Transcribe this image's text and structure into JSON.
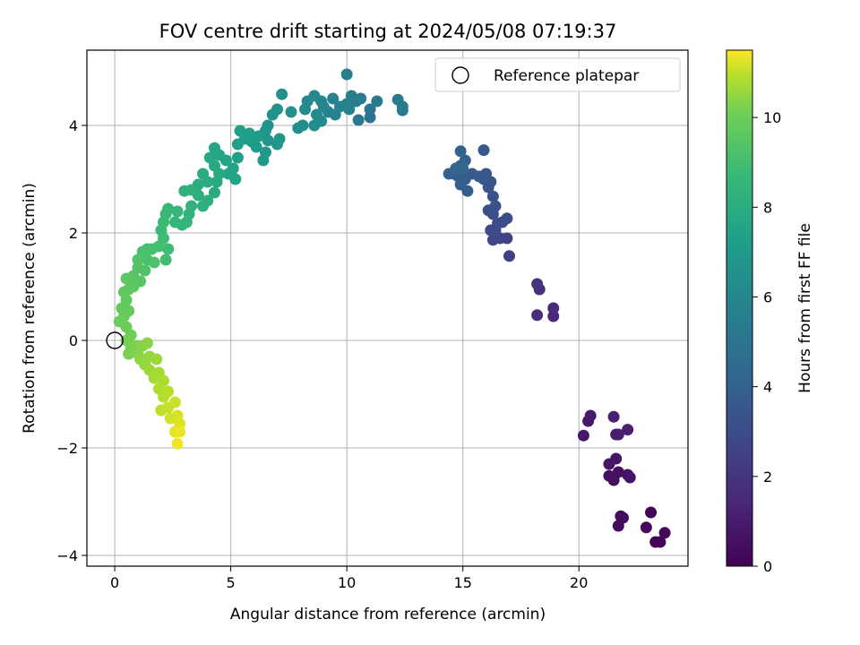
{
  "chart_data": {
    "type": "scatter",
    "title": "FOV centre drift starting at 2024/05/08 07:19:37",
    "xlabel": "Angular distance from reference (arcmin)",
    "ylabel": "Rotation from reference (arcmin)",
    "xlim": [
      -1.2,
      24.7
    ],
    "ylim": [
      -4.2,
      5.4
    ],
    "xticks": [
      0,
      5,
      10,
      15,
      20
    ],
    "yticks": [
      -4,
      -2,
      0,
      2,
      4
    ],
    "grid": true,
    "legend": {
      "placement": "top-right",
      "entries": [
        "Reference platepar"
      ]
    },
    "reference_point": {
      "x": 0,
      "y": 0
    },
    "colorbar": {
      "label": "Hours from first FF file",
      "range": [
        0,
        11.5
      ],
      "ticks": [
        0,
        2,
        4,
        6,
        8,
        10
      ],
      "colormap": "viridis"
    },
    "points": [
      [
        23.1,
        -3.2,
        0.1
      ],
      [
        23.3,
        -3.75,
        0.15
      ],
      [
        23.5,
        -3.75,
        0.2
      ],
      [
        23.7,
        -3.58,
        0.25
      ],
      [
        22.9,
        -3.48,
        0.3
      ],
      [
        21.8,
        -3.27,
        0.35
      ],
      [
        21.7,
        -3.45,
        0.4
      ],
      [
        21.9,
        -3.3,
        0.45
      ],
      [
        21.3,
        -2.52,
        0.5
      ],
      [
        21.5,
        -2.6,
        0.55
      ],
      [
        21.7,
        -2.45,
        0.6
      ],
      [
        22.1,
        -2.5,
        0.65
      ],
      [
        22.2,
        -2.55,
        0.7
      ],
      [
        21.6,
        -2.2,
        0.75
      ],
      [
        21.3,
        -2.3,
        0.8
      ],
      [
        20.2,
        -1.77,
        0.85
      ],
      [
        20.4,
        -1.5,
        0.9
      ],
      [
        20.5,
        -1.4,
        0.95
      ],
      [
        21.6,
        -1.75,
        1.0
      ],
      [
        21.7,
        -1.75,
        1.05
      ],
      [
        22.1,
        -1.66,
        1.1
      ],
      [
        21.5,
        -1.42,
        1.15
      ],
      [
        18.9,
        0.45,
        1.5
      ],
      [
        18.9,
        0.6,
        1.6
      ],
      [
        18.2,
        0.47,
        1.7
      ],
      [
        18.3,
        0.95,
        1.8
      ],
      [
        18.2,
        1.05,
        1.9
      ],
      [
        17.0,
        1.57,
        2.5
      ],
      [
        16.9,
        1.9,
        2.6
      ],
      [
        16.6,
        1.9,
        2.7
      ],
      [
        16.3,
        1.87,
        2.8
      ],
      [
        16.4,
        2.05,
        2.9
      ],
      [
        16.2,
        2.05,
        3.0
      ],
      [
        16.5,
        2.18,
        3.05
      ],
      [
        16.7,
        2.2,
        3.1
      ],
      [
        16.9,
        2.27,
        3.15
      ],
      [
        16.3,
        2.35,
        3.2
      ],
      [
        16.1,
        2.42,
        3.25
      ],
      [
        16.4,
        2.5,
        3.3
      ],
      [
        16.3,
        2.68,
        3.35
      ],
      [
        16.1,
        2.85,
        3.4
      ],
      [
        16.2,
        2.95,
        3.45
      ],
      [
        15.9,
        3.0,
        3.5
      ],
      [
        16.0,
        3.1,
        3.55
      ],
      [
        15.7,
        3.05,
        3.6
      ],
      [
        15.9,
        3.54,
        3.65
      ],
      [
        15.4,
        3.1,
        3.7
      ],
      [
        15.2,
        2.78,
        3.75
      ],
      [
        15.1,
        3.0,
        3.8
      ],
      [
        14.9,
        2.9,
        3.85
      ],
      [
        14.8,
        3.05,
        3.9
      ],
      [
        14.6,
        3.1,
        3.95
      ],
      [
        14.4,
        3.1,
        4.0
      ],
      [
        14.9,
        3.25,
        4.05
      ],
      [
        15.1,
        3.35,
        4.1
      ],
      [
        14.9,
        3.52,
        4.15
      ],
      [
        14.7,
        3.2,
        4.2
      ],
      [
        15.0,
        3.2,
        4.25
      ],
      [
        11.0,
        4.15,
        5.0
      ],
      [
        11.0,
        4.3,
        5.1
      ],
      [
        10.5,
        4.1,
        5.2
      ],
      [
        11.3,
        4.45,
        5.25
      ],
      [
        12.4,
        4.28,
        5.3
      ],
      [
        12.4,
        4.35,
        5.35
      ],
      [
        12.2,
        4.48,
        5.4
      ],
      [
        10.0,
        4.95,
        5.45
      ],
      [
        10.6,
        4.5,
        5.5
      ],
      [
        10.4,
        4.45,
        5.55
      ],
      [
        10.2,
        4.55,
        5.6
      ],
      [
        10.0,
        4.4,
        5.65
      ],
      [
        10.1,
        4.3,
        5.7
      ],
      [
        9.7,
        4.35,
        5.75
      ],
      [
        9.4,
        4.5,
        5.8
      ],
      [
        9.2,
        4.25,
        5.85
      ],
      [
        9.5,
        4.2,
        5.9
      ],
      [
        9.0,
        4.35,
        5.95
      ],
      [
        8.9,
        4.45,
        6.0
      ],
      [
        8.6,
        4.55,
        6.05
      ],
      [
        8.3,
        4.45,
        6.1
      ],
      [
        8.2,
        4.3,
        6.15
      ],
      [
        8.7,
        4.2,
        6.2
      ],
      [
        8.9,
        4.08,
        6.25
      ],
      [
        8.6,
        4.0,
        6.3
      ],
      [
        8.1,
        4.0,
        6.35
      ],
      [
        7.9,
        3.95,
        6.4
      ],
      [
        7.6,
        4.25,
        6.45
      ],
      [
        7.2,
        4.58,
        6.5
      ],
      [
        7.0,
        4.3,
        6.55
      ],
      [
        6.8,
        4.2,
        6.6
      ],
      [
        6.6,
        4.0,
        6.65
      ],
      [
        6.5,
        3.9,
        6.7
      ],
      [
        6.6,
        3.72,
        6.75
      ],
      [
        7.0,
        3.65,
        6.8
      ],
      [
        7.1,
        3.75,
        6.85
      ],
      [
        6.5,
        3.5,
        6.9
      ],
      [
        6.4,
        3.35,
        6.95
      ],
      [
        6.1,
        3.6,
        7.0
      ],
      [
        5.9,
        3.7,
        7.05
      ],
      [
        6.2,
        3.8,
        7.1
      ],
      [
        5.8,
        3.85,
        7.15
      ],
      [
        5.6,
        3.75,
        7.2
      ],
      [
        5.3,
        3.65,
        7.25
      ],
      [
        5.4,
        3.9,
        7.3
      ],
      [
        5.3,
        3.4,
        7.35
      ],
      [
        5.1,
        3.2,
        7.4
      ],
      [
        5.2,
        3.0,
        7.45
      ],
      [
        4.9,
        3.1,
        7.5
      ],
      [
        4.8,
        3.35,
        7.55
      ],
      [
        4.5,
        3.45,
        7.6
      ],
      [
        4.3,
        3.58,
        7.65
      ],
      [
        4.1,
        3.4,
        7.7
      ],
      [
        4.3,
        3.25,
        7.75
      ],
      [
        4.5,
        3.1,
        7.8
      ],
      [
        4.4,
        2.95,
        7.85
      ],
      [
        4.3,
        2.75,
        7.9
      ],
      [
        4.0,
        2.95,
        7.95
      ],
      [
        3.8,
        3.1,
        8.0
      ],
      [
        3.6,
        2.9,
        8.05
      ],
      [
        3.6,
        2.7,
        8.1
      ],
      [
        3.8,
        2.5,
        8.15
      ],
      [
        4.0,
        2.6,
        8.2
      ],
      [
        3.3,
        2.8,
        8.25
      ],
      [
        3.0,
        2.78,
        8.3
      ],
      [
        3.3,
        2.5,
        8.35
      ],
      [
        3.2,
        2.35,
        8.4
      ],
      [
        3.1,
        2.2,
        8.45
      ],
      [
        2.9,
        2.15,
        8.5
      ],
      [
        2.7,
        2.4,
        8.55
      ],
      [
        2.6,
        2.2,
        8.6
      ],
      [
        2.3,
        2.45,
        8.65
      ],
      [
        2.2,
        2.35,
        8.7
      ],
      [
        2.1,
        2.2,
        8.75
      ],
      [
        2.0,
        2.05,
        8.8
      ],
      [
        2.1,
        1.9,
        8.85
      ],
      [
        2.3,
        1.7,
        8.9
      ],
      [
        2.2,
        1.5,
        8.95
      ],
      [
        1.9,
        1.75,
        9.0
      ],
      [
        1.6,
        1.7,
        9.05
      ],
      [
        1.4,
        1.7,
        9.1
      ],
      [
        1.2,
        1.65,
        9.15
      ],
      [
        1.4,
        1.5,
        9.2
      ],
      [
        1.7,
        1.45,
        9.25
      ],
      [
        1.3,
        1.3,
        9.3
      ],
      [
        1.0,
        1.5,
        9.35
      ],
      [
        1.0,
        1.35,
        9.4
      ],
      [
        0.8,
        1.2,
        9.45
      ],
      [
        1.1,
        1.1,
        9.5
      ],
      [
        0.8,
        1.0,
        9.55
      ],
      [
        0.5,
        1.15,
        9.6
      ],
      [
        0.6,
        0.95,
        9.65
      ],
      [
        0.4,
        0.9,
        9.7
      ],
      [
        0.5,
        0.75,
        9.75
      ],
      [
        0.3,
        0.6,
        9.8
      ],
      [
        0.6,
        0.55,
        9.85
      ],
      [
        0.4,
        0.45,
        9.9
      ],
      [
        0.2,
        0.35,
        9.95
      ],
      [
        0.5,
        0.25,
        10.0
      ],
      [
        0.7,
        0.1,
        10.05
      ],
      [
        0.5,
        0.0,
        10.1
      ],
      [
        0.7,
        -0.15,
        10.15
      ],
      [
        0.6,
        -0.25,
        10.2
      ],
      [
        0.9,
        -0.1,
        10.25
      ],
      [
        1.0,
        -0.25,
        10.3
      ],
      [
        1.2,
        -0.1,
        10.35
      ],
      [
        1.4,
        -0.05,
        10.4
      ],
      [
        1.1,
        -0.35,
        10.45
      ],
      [
        1.3,
        -0.45,
        10.5
      ],
      [
        1.5,
        -0.3,
        10.55
      ],
      [
        1.8,
        -0.35,
        10.6
      ],
      [
        1.5,
        -0.55,
        10.65
      ],
      [
        1.7,
        -0.7,
        10.7
      ],
      [
        1.9,
        -0.6,
        10.75
      ],
      [
        2.1,
        -0.75,
        10.8
      ],
      [
        1.9,
        -0.9,
        10.85
      ],
      [
        2.1,
        -1.05,
        10.9
      ],
      [
        2.3,
        -0.95,
        10.95
      ],
      [
        2.0,
        -1.3,
        11.0
      ],
      [
        2.3,
        -1.25,
        11.05
      ],
      [
        2.6,
        -1.15,
        11.1
      ],
      [
        2.4,
        -1.45,
        11.15
      ],
      [
        2.7,
        -1.4,
        11.2
      ],
      [
        2.8,
        -1.55,
        11.25
      ],
      [
        2.6,
        -1.7,
        11.3
      ],
      [
        2.8,
        -1.7,
        11.35
      ],
      [
        2.7,
        -1.92,
        11.4
      ]
    ]
  }
}
